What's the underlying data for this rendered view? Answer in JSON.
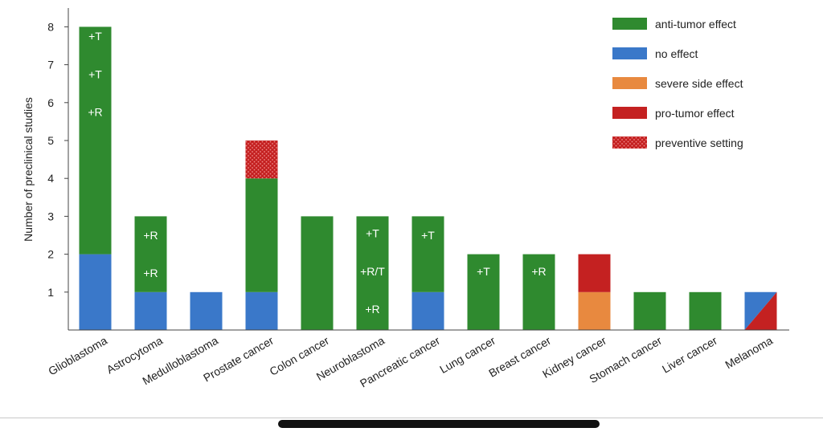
{
  "chart_data": {
    "type": "bar",
    "stacked": true,
    "ylabel": "Number of preclinical studies",
    "xlabel": "",
    "ylim": [
      0,
      8.6
    ],
    "yticks": [
      1,
      2,
      3,
      4,
      5,
      6,
      7,
      8
    ],
    "categories": [
      "Glioblastoma",
      "Astrocytoma",
      "Medulloblastoma",
      "Prostate cancer",
      "Colon cancer",
      "Neuroblastoma",
      "Pancreatic cancer",
      "Lung cancer",
      "Breast cancer",
      "Kidney cancer",
      "Stomach cancer",
      "Liver cancer",
      "Melanoma"
    ],
    "series": [
      {
        "name": "no effect",
        "color": "#3a78c9",
        "values": [
          2,
          1,
          1,
          1,
          0,
          0,
          1,
          0,
          0,
          0,
          0,
          0,
          0
        ]
      },
      {
        "name": "severe side effect",
        "color": "#e8893f",
        "values": [
          0,
          0,
          0,
          0,
          0,
          0,
          0,
          0,
          0,
          1,
          0,
          0,
          0
        ]
      },
      {
        "name": "anti-tumor effect",
        "color": "#2f8a2f",
        "values": [
          6,
          2,
          0,
          3,
          3,
          3,
          2,
          2,
          2,
          0,
          1,
          1,
          0
        ]
      },
      {
        "name": "pro-tumor effect",
        "color": "#c42121",
        "values": [
          0,
          0,
          0,
          0,
          0,
          0,
          0,
          0,
          0,
          1,
          0,
          0,
          0
        ]
      },
      {
        "name": "preventive setting",
        "color": "#c42121",
        "pattern": "dotted",
        "values": [
          0,
          0,
          0,
          1,
          0,
          0,
          0,
          0,
          0,
          0,
          0,
          0,
          0
        ]
      }
    ],
    "split_bars": [
      {
        "category": "Melanoma",
        "value": 1,
        "upper_left": "no effect",
        "lower_right": "pro-tumor effect"
      }
    ],
    "bar_annotations": [
      {
        "category": "Glioblastoma",
        "y": 7.75,
        "text": "+T"
      },
      {
        "category": "Glioblastoma",
        "y": 6.75,
        "text": "+T"
      },
      {
        "category": "Glioblastoma",
        "y": 5.75,
        "text": "+R"
      },
      {
        "category": "Astrocytoma",
        "y": 2.5,
        "text": "+R"
      },
      {
        "category": "Astrocytoma",
        "y": 1.5,
        "text": "+R"
      },
      {
        "category": "Neuroblastoma",
        "y": 2.55,
        "text": "+T"
      },
      {
        "category": "Neuroblastoma",
        "y": 1.55,
        "text": "+R/T"
      },
      {
        "category": "Neuroblastoma",
        "y": 0.55,
        "text": "+R"
      },
      {
        "category": "Pancreatic cancer",
        "y": 2.5,
        "text": "+T"
      },
      {
        "category": "Lung cancer",
        "y": 1.55,
        "text": "+T"
      },
      {
        "category": "Breast cancer",
        "y": 1.55,
        "text": "+R"
      }
    ],
    "legend": {
      "position": "top-right",
      "entries": [
        {
          "label": "anti-tumor effect",
          "color": "#2f8a2f"
        },
        {
          "label": "no effect",
          "color": "#3a78c9"
        },
        {
          "label": "severe side effect",
          "color": "#e8893f"
        },
        {
          "label": "pro-tumor effect",
          "color": "#c42121"
        },
        {
          "label": "preventive setting",
          "color": "#c42121",
          "pattern": "dotted"
        }
      ]
    },
    "grid": false
  }
}
